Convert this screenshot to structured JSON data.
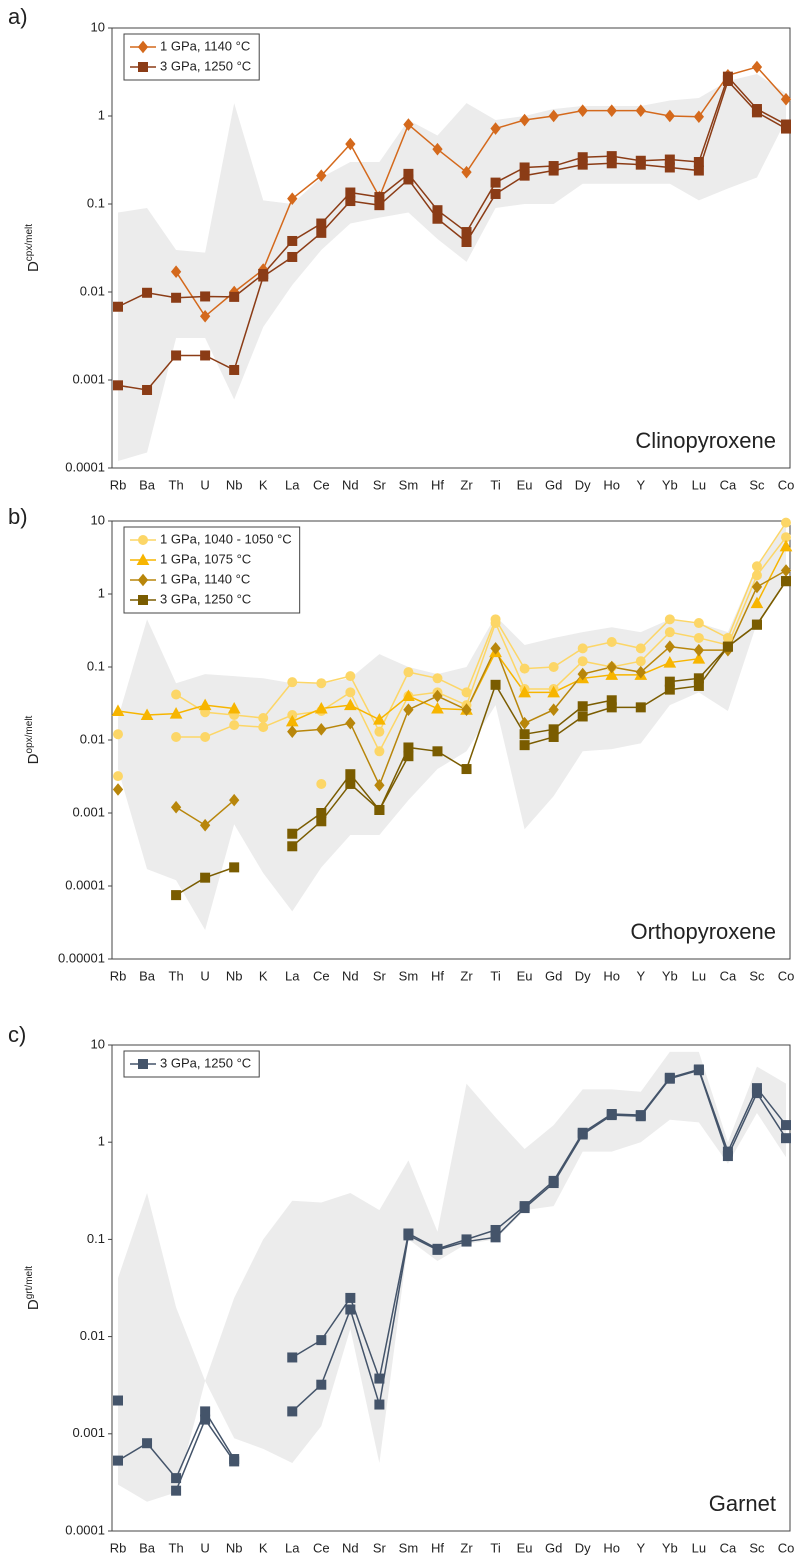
{
  "chart_data": [
    {
      "type": "line",
      "panel_label": "a)",
      "annotation": "Clinopyroxene",
      "ylabel": "D",
      "ylabel_sup": "cpx/melt",
      "log_y": true,
      "ylim": [
        0.0001,
        10
      ],
      "yticks": [
        0.0001,
        0.001,
        0.01,
        0.1,
        1,
        10
      ],
      "legend": "top-left",
      "categories": [
        "Rb",
        "Ba",
        "Th",
        "U",
        "Nb",
        "K",
        "La",
        "Ce",
        "Nd",
        "Sr",
        "Sm",
        "Hf",
        "Zr",
        "Ti",
        "Eu",
        "Gd",
        "Dy",
        "Ho",
        "Y",
        "Yb",
        "Lu",
        "Ca",
        "Sc",
        "Co"
      ],
      "band": {
        "color": "#ececec",
        "lower": [
          0.00012,
          0.00015,
          0.003,
          0.003,
          0.0006,
          0.004,
          0.012,
          0.03,
          0.06,
          0.07,
          0.08,
          0.04,
          0.022,
          0.09,
          0.1,
          0.1,
          0.17,
          0.17,
          0.17,
          0.17,
          0.11,
          0.15,
          0.2,
          0.9
        ],
        "upper": [
          0.08,
          0.09,
          0.03,
          0.028,
          1.4,
          0.11,
          0.1,
          0.2,
          0.3,
          0.3,
          0.9,
          0.6,
          1.4,
          0.9,
          1.0,
          1.2,
          1.3,
          1.3,
          1.3,
          1.5,
          1.6,
          2.5,
          3,
          1.8
        ]
      },
      "series": [
        {
          "name": "1 GPa, 1140 °C",
          "color": "#d4691c",
          "marker": "diamond",
          "runs": [
            [
              null,
              null,
              0.017,
              0.0053,
              0.01,
              0.018,
              0.115,
              0.21,
              0.48,
              0.12,
              0.8,
              0.42,
              0.23,
              0.72,
              0.9,
              1.0,
              1.15,
              1.15,
              1.15,
              1.0,
              0.98,
              2.9,
              3.6,
              1.55
            ]
          ]
        },
        {
          "name": "3 GPa, 1250 °C",
          "color": "#8b3c16",
          "marker": "square",
          "runs": [
            [
              0.0068,
              0.0098,
              0.0086,
              0.0089,
              0.0088,
              0.016,
              0.038,
              0.06,
              0.135,
              0.12,
              0.22,
              0.085,
              0.048,
              0.175,
              0.26,
              0.27,
              0.34,
              0.35,
              0.31,
              0.32,
              0.3,
              2.8,
              1.2,
              0.8
            ],
            [
              0.00087,
              0.00077,
              0.0019,
              0.0019,
              0.0013,
              0.015,
              0.025,
              0.047,
              0.108,
              0.097,
              0.19,
              0.068,
              0.037,
              0.13,
              0.21,
              0.24,
              0.28,
              0.29,
              0.28,
              0.26,
              0.24,
              2.5,
              1.1,
              0.72
            ]
          ]
        }
      ]
    },
    {
      "type": "line",
      "panel_label": "b)",
      "annotation": "Orthopyroxene",
      "ylabel": "D",
      "ylabel_sup": "opx/melt",
      "log_y": true,
      "ylim": [
        1e-05,
        10
      ],
      "yticks": [
        1e-05,
        0.0001,
        0.001,
        0.01,
        0.1,
        1,
        10
      ],
      "legend": "top-left",
      "categories": [
        "Rb",
        "Ba",
        "Th",
        "U",
        "Nb",
        "K",
        "La",
        "Ce",
        "Nd",
        "Sr",
        "Sm",
        "Hf",
        "Zr",
        "Ti",
        "Eu",
        "Gd",
        "Dy",
        "Ho",
        "Y",
        "Yb",
        "Lu",
        "Ca",
        "Sc",
        "Co"
      ],
      "band": {
        "color": "#ececec",
        "lower": [
          0.004,
          0.00017,
          0.00012,
          2.5e-05,
          0.0007,
          0.00015,
          4.5e-05,
          0.00018,
          0.0005,
          0.0005,
          0.0015,
          0.004,
          0.007,
          0.03,
          0.0006,
          0.0017,
          0.007,
          0.0075,
          0.009,
          0.03,
          0.045,
          0.025,
          0.4,
          1.5
        ],
        "upper": [
          0.02,
          0.45,
          0.06,
          0.08,
          0.075,
          0.07,
          0.06,
          0.06,
          0.07,
          0.15,
          0.1,
          0.08,
          0.1,
          0.5,
          0.2,
          0.25,
          0.3,
          0.35,
          0.3,
          0.45,
          0.4,
          0.3,
          2.5,
          9
        ]
      },
      "series": [
        {
          "name": "1 GPa, 1040 - 1050 °C",
          "color": "#fcd667",
          "marker": "circle",
          "runs": [
            [
              0.012,
              null,
              0.042,
              0.024,
              0.022,
              0.02,
              0.062,
              0.06,
              0.075,
              0.013,
              0.085,
              0.07,
              0.045,
              0.45,
              0.095,
              0.1,
              0.18,
              0.22,
              0.18,
              0.45,
              0.4,
              0.25,
              2.4,
              9.5
            ],
            [
              0.0032,
              null,
              0.011,
              0.011,
              0.016,
              0.015,
              0.022,
              0.025,
              0.045,
              0.007,
              0.04,
              0.045,
              0.03,
              0.4,
              0.05,
              0.05,
              0.12,
              0.1,
              0.12,
              0.3,
              0.25,
              0.2,
              1.8,
              6
            ],
            [
              null,
              null,
              null,
              null,
              null,
              null,
              null,
              0.0025,
              null,
              null,
              null,
              null,
              null,
              null,
              null,
              null,
              null,
              null,
              null,
              null,
              null,
              null,
              null,
              null
            ]
          ]
        },
        {
          "name": "1 GPa, 1075 °C",
          "color": "#f7b500",
          "marker": "triangle",
          "runs": [
            [
              0.025,
              0.022,
              0.023,
              0.03,
              0.027,
              null,
              0.018,
              0.027,
              0.03,
              0.019,
              0.04,
              0.027,
              0.026,
              0.16,
              0.045,
              0.045,
              0.07,
              0.078,
              0.078,
              0.115,
              0.13,
              null,
              0.75,
              4.5
            ]
          ]
        },
        {
          "name": "1 GPa, 1140 °C",
          "color": "#b8860b",
          "marker": "diamond",
          "runs": [
            [
              0.0021,
              null,
              0.0012,
              0.00068,
              0.0015,
              null,
              0.013,
              0.014,
              0.017,
              0.0024,
              0.026,
              0.04,
              0.026,
              0.18,
              0.017,
              0.026,
              0.08,
              0.1,
              0.085,
              0.19,
              0.17,
              0.17,
              1.25,
              2.1
            ]
          ]
        },
        {
          "name": "3 GPa, 1250 °C",
          "color": "#7a5c00",
          "marker": "square",
          "runs": [
            [
              null,
              null,
              7.5e-05,
              0.00013,
              0.00018,
              null,
              0.00052,
              0.001,
              0.0034,
              0.0011,
              0.0079,
              0.007,
              0.004,
              0.057,
              0.012,
              0.014,
              0.029,
              0.035,
              null,
              0.063,
              0.07,
              0.19,
              0.38,
              1.5
            ],
            [
              null,
              null,
              null,
              null,
              null,
              null,
              0.00035,
              0.00077,
              0.0025,
              0.0011,
              0.006,
              null,
              null,
              null,
              0.0085,
              0.011,
              0.021,
              0.028,
              0.028,
              0.049,
              0.055,
              0.19,
              0.38,
              1.5
            ]
          ]
        }
      ]
    },
    {
      "type": "line",
      "panel_label": "c)",
      "annotation": "Garnet",
      "ylabel": "D",
      "ylabel_sup": "grt/melt",
      "log_y": true,
      "ylim": [
        0.0001,
        10
      ],
      "yticks": [
        0.0001,
        0.001,
        0.01,
        0.1,
        1,
        10
      ],
      "legend": "top-left",
      "categories": [
        "Rb",
        "Ba",
        "Th",
        "U",
        "Nb",
        "K",
        "La",
        "Ce",
        "Nd",
        "Sr",
        "Sm",
        "Hf",
        "Zr",
        "Ti",
        "Eu",
        "Gd",
        "Dy",
        "Ho",
        "Y",
        "Yb",
        "Lu",
        "Ca",
        "Sc",
        "Co"
      ],
      "band": {
        "color": "#ececec",
        "lower": [
          0.0003,
          0.0002,
          0.00025,
          0.0035,
          0.0009,
          0.0007,
          0.0005,
          0.0012,
          0.012,
          0.0005,
          0.1,
          0.06,
          0.09,
          0.1,
          0.2,
          0.22,
          0.8,
          0.8,
          1.0,
          1.7,
          1.6,
          0.6,
          2.0,
          0.7
        ],
        "upper": [
          0.04,
          0.3,
          0.02,
          0.0035,
          0.025,
          0.1,
          0.25,
          0.24,
          0.3,
          0.2,
          0.65,
          0.12,
          4.0,
          1.8,
          0.85,
          1.5,
          3.5,
          3.5,
          3.3,
          8.5,
          8.5,
          1.0,
          6,
          4
        ]
      },
      "series": [
        {
          "name": "3 GPa, 1250 °C",
          "color": "#44546a",
          "marker": "square",
          "runs": [
            [
              0.00053,
              0.0008,
              0.00035,
              0.0017,
              0.00055,
              null,
              0.0061,
              0.0092,
              0.025,
              0.0037,
              0.115,
              0.08,
              0.1,
              0.125,
              0.22,
              0.4,
              1.25,
              1.95,
              1.9,
              4.6,
              5.6,
              0.8,
              3.6,
              1.5
            ],
            [
              0.0022,
              null,
              0.00026,
              0.0014,
              0.00052,
              null,
              0.0017,
              0.0032,
              0.019,
              0.002,
              0.11,
              0.078,
              0.095,
              0.105,
              0.21,
              0.38,
              1.2,
              1.9,
              1.85,
              4.5,
              5.5,
              0.72,
              3.2,
              1.1
            ]
          ]
        }
      ]
    }
  ]
}
